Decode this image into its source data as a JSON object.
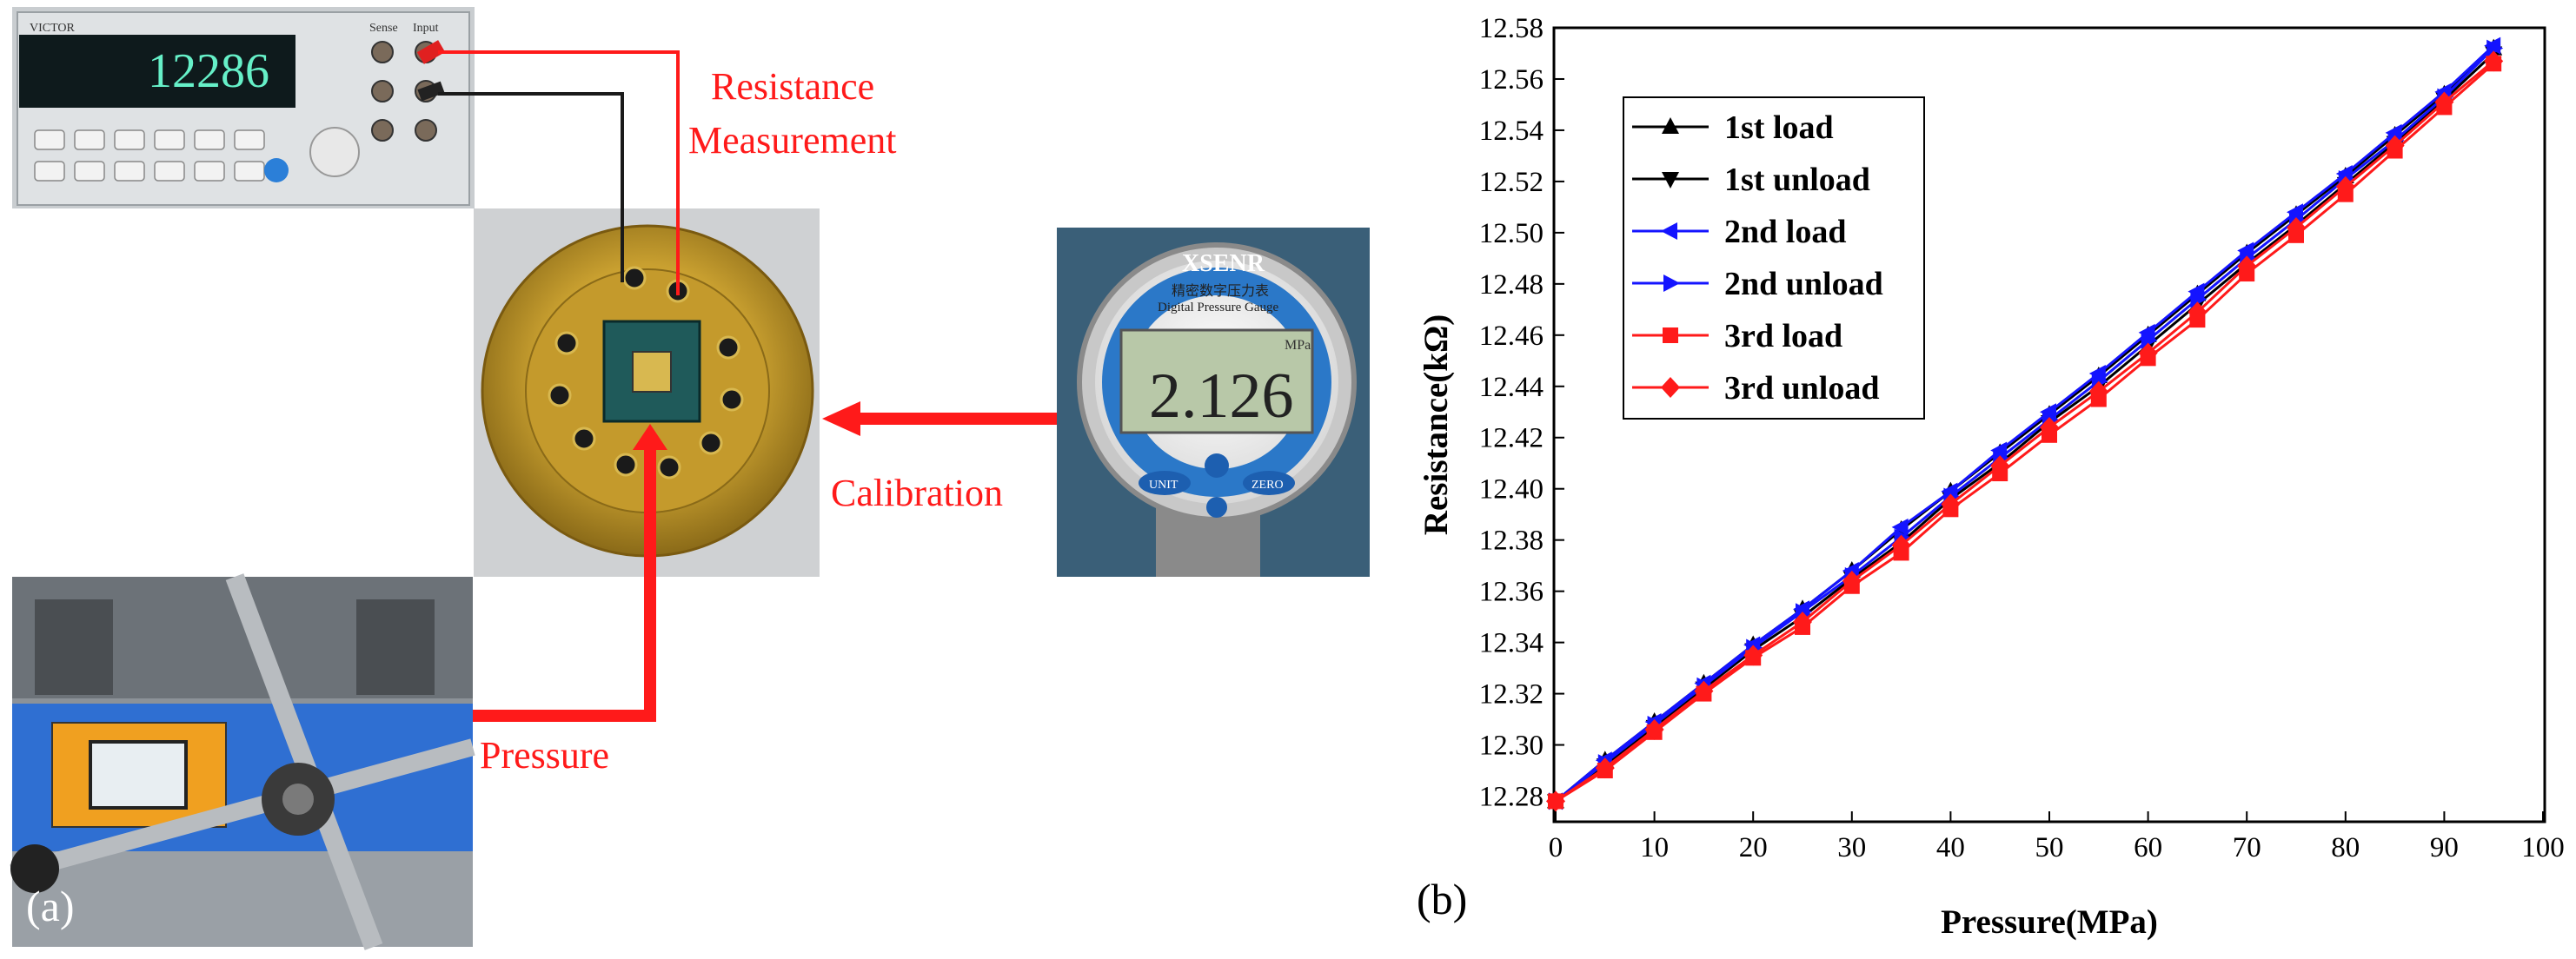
{
  "panel_a": {
    "label": "(a)",
    "annotations": {
      "resistance_line1": "Resistance",
      "resistance_line2": "Measurement",
      "calibration": "Calibration",
      "pressure": "Pressure"
    },
    "multimeter": {
      "brand": "VICTOR",
      "reading": "12286",
      "terminal_labels": [
        "Sense",
        "Input"
      ]
    },
    "gauge": {
      "brand": "XSENR",
      "subtitle_cn": "精密数字压力表",
      "subtitle_en": "Digital Pressure Gauge",
      "unit": "MPa",
      "reading": "2.126",
      "buttons": [
        "UNIT",
        "ZERO"
      ]
    }
  },
  "panel_b_label": "(b)",
  "colors": {
    "annotation_red": "#ff1a1a",
    "series_black": "#000000",
    "series_blue": "#1414ff",
    "series_red": "#ff1a1a"
  },
  "chart_data": {
    "type": "line",
    "xlabel": "Pressure(MPa)",
    "ylabel": "Resistance(kΩ)",
    "xlim": [
      0,
      100
    ],
    "ylim": [
      12.27,
      12.58
    ],
    "xticks": [
      0,
      10,
      20,
      30,
      40,
      50,
      60,
      70,
      80,
      90,
      100
    ],
    "yticks": [
      12.28,
      12.3,
      12.32,
      12.34,
      12.36,
      12.38,
      12.4,
      12.42,
      12.44,
      12.46,
      12.48,
      12.5,
      12.52,
      12.54,
      12.56,
      12.58
    ],
    "grid": false,
    "legend_position": "top-left",
    "x": [
      0,
      5,
      10,
      15,
      20,
      25,
      30,
      35,
      40,
      45,
      50,
      55,
      60,
      65,
      70,
      75,
      80,
      85,
      90,
      95
    ],
    "series": [
      {
        "name": "1st load",
        "color": "#000000",
        "marker": "triangle-up",
        "values": [
          12.278,
          12.294,
          12.309,
          12.324,
          12.339,
          12.353,
          12.368,
          12.384,
          12.399,
          12.414,
          12.429,
          12.444,
          12.46,
          12.476,
          12.492,
          12.507,
          12.522,
          12.538,
          12.554,
          12.572
        ]
      },
      {
        "name": "1st unload",
        "color": "#000000",
        "marker": "triangle-down",
        "values": [
          12.278,
          12.292,
          12.307,
          12.322,
          12.337,
          12.35,
          12.365,
          12.379,
          12.396,
          12.41,
          12.426,
          12.44,
          12.456,
          12.472,
          12.488,
          12.503,
          12.519,
          12.535,
          12.552,
          12.57
        ]
      },
      {
        "name": "2nd load",
        "color": "#1414ff",
        "marker": "triangle-left",
        "values": [
          12.278,
          12.294,
          12.309,
          12.324,
          12.339,
          12.353,
          12.368,
          12.385,
          12.399,
          12.415,
          12.43,
          12.445,
          12.461,
          12.477,
          12.493,
          12.508,
          12.523,
          12.539,
          12.555,
          12.573
        ]
      },
      {
        "name": "2nd unload",
        "color": "#1414ff",
        "marker": "triangle-right",
        "values": [
          12.278,
          12.293,
          12.308,
          12.323,
          12.338,
          12.352,
          12.366,
          12.381,
          12.397,
          12.412,
          12.427,
          12.442,
          12.458,
          12.474,
          12.49,
          12.505,
          12.521,
          12.536,
          12.553,
          12.572
        ]
      },
      {
        "name": "3rd load",
        "color": "#ff1a1a",
        "marker": "square",
        "values": [
          12.278,
          12.29,
          12.305,
          12.32,
          12.334,
          12.346,
          12.362,
          12.375,
          12.392,
          12.406,
          12.421,
          12.435,
          12.451,
          12.466,
          12.484,
          12.499,
          12.515,
          12.532,
          12.549,
          12.566
        ]
      },
      {
        "name": "3rd unload",
        "color": "#ff1a1a",
        "marker": "diamond",
        "values": [
          12.278,
          12.291,
          12.306,
          12.321,
          12.335,
          12.348,
          12.364,
          12.378,
          12.394,
          12.409,
          12.424,
          12.438,
          12.453,
          12.469,
          12.487,
          12.502,
          12.518,
          12.534,
          12.551,
          12.567
        ]
      }
    ]
  }
}
